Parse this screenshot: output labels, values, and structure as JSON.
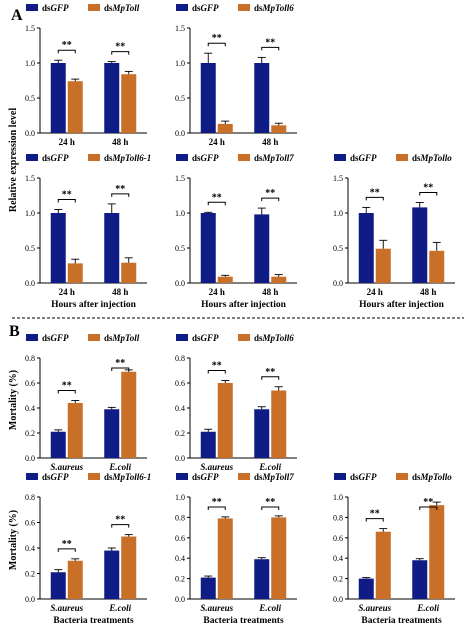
{
  "panel_labels": {
    "a": "A",
    "b": "B"
  },
  "colors": {
    "dsGFP": "#101c85",
    "dsTarget": "#c96f27"
  },
  "chart_data": [
    {
      "type": "bar",
      "panel": "A",
      "categories": [
        "24 h",
        "48 h"
      ],
      "ylim": [
        0,
        1.5
      ],
      "yticks": [
        0,
        0.5,
        1.0,
        1.5
      ],
      "ylabel": "",
      "xlabel": "",
      "series": [
        {
          "name": "dsGFP",
          "values": [
            1.0,
            1.0
          ],
          "errors": [
            0.04,
            0.02
          ]
        },
        {
          "name": "dsMpToll",
          "values": [
            0.74,
            0.84
          ],
          "errors": [
            0.03,
            0.04
          ]
        }
      ],
      "annotations": [
        "**",
        "**"
      ]
    },
    {
      "type": "bar",
      "panel": "A",
      "categories": [
        "24 h",
        "48 h"
      ],
      "ylim": [
        0,
        1.5
      ],
      "yticks": [
        0,
        0.5,
        1.0,
        1.5
      ],
      "ylabel": "",
      "xlabel": "",
      "series": [
        {
          "name": "dsGFP",
          "values": [
            1.0,
            1.0
          ],
          "errors": [
            0.14,
            0.08
          ]
        },
        {
          "name": "dsMpToll6",
          "values": [
            0.13,
            0.11
          ],
          "errors": [
            0.04,
            0.03
          ]
        }
      ],
      "annotations": [
        "**",
        "**"
      ]
    },
    {
      "type": "bar",
      "panel": "A",
      "categories": [
        "24 h",
        "48 h"
      ],
      "ylim": [
        0,
        1.5
      ],
      "yticks": [
        0,
        0.5,
        1.0,
        1.5
      ],
      "ylabel": "",
      "xlabel": "Hours after injection",
      "series": [
        {
          "name": "dsGFP",
          "values": [
            1.0,
            1.0
          ],
          "errors": [
            0.05,
            0.13
          ]
        },
        {
          "name": "dsMpToll6-1",
          "values": [
            0.28,
            0.29
          ],
          "errors": [
            0.06,
            0.07
          ]
        }
      ],
      "annotations": [
        "**",
        "**"
      ]
    },
    {
      "type": "bar",
      "panel": "A",
      "categories": [
        "24 h",
        "48 h"
      ],
      "ylim": [
        0,
        1.5
      ],
      "yticks": [
        0,
        0.5,
        1.0,
        1.5
      ],
      "ylabel": "",
      "xlabel": "Hours after injection",
      "series": [
        {
          "name": "dsGFP",
          "values": [
            1.0,
            0.98
          ],
          "errors": [
            0.01,
            0.09
          ]
        },
        {
          "name": "dsMpToll7",
          "values": [
            0.09,
            0.09
          ],
          "errors": [
            0.02,
            0.03
          ]
        }
      ],
      "annotations": [
        "**",
        "**"
      ]
    },
    {
      "type": "bar",
      "panel": "A",
      "categories": [
        "24 h",
        "48 h"
      ],
      "ylim": [
        0,
        1.5
      ],
      "yticks": [
        0,
        0.5,
        1.0,
        1.5
      ],
      "ylabel": "",
      "xlabel": "Hours after injection",
      "series": [
        {
          "name": "dsGFP",
          "values": [
            1.0,
            1.08
          ],
          "errors": [
            0.08,
            0.07
          ]
        },
        {
          "name": "dsMpTollo",
          "values": [
            0.49,
            0.46
          ],
          "errors": [
            0.12,
            0.12
          ]
        }
      ],
      "annotations": [
        "**",
        "**"
      ]
    },
    {
      "type": "bar",
      "panel": "B",
      "categories": [
        "S.aureus",
        "E.coli"
      ],
      "ylim": [
        0,
        0.8
      ],
      "yticks": [
        0,
        0.2,
        0.4,
        0.6,
        0.8
      ],
      "ylabel": "",
      "xlabel": "",
      "series": [
        {
          "name": "dsGFP",
          "values": [
            0.21,
            0.39
          ],
          "errors": [
            0.015,
            0.015
          ]
        },
        {
          "name": "dsMpToll",
          "values": [
            0.44,
            0.69
          ],
          "errors": [
            0.02,
            0.015
          ]
        }
      ],
      "annotations": [
        "**",
        "**"
      ]
    },
    {
      "type": "bar",
      "panel": "B",
      "categories": [
        "S.aureus",
        "E.coli"
      ],
      "ylim": [
        0,
        0.8
      ],
      "yticks": [
        0,
        0.2,
        0.4,
        0.6,
        0.8
      ],
      "ylabel": "",
      "xlabel": "",
      "series": [
        {
          "name": "dsGFP",
          "values": [
            0.21,
            0.39
          ],
          "errors": [
            0.02,
            0.02
          ]
        },
        {
          "name": "dsMpToll6",
          "values": [
            0.6,
            0.54
          ],
          "errors": [
            0.02,
            0.03
          ]
        }
      ],
      "annotations": [
        "**",
        "**"
      ]
    },
    {
      "type": "bar",
      "panel": "B",
      "categories": [
        "S.aureus",
        "E.coli"
      ],
      "ylim": [
        0,
        0.8
      ],
      "yticks": [
        0,
        0.2,
        0.4,
        0.6,
        0.8
      ],
      "ylabel": "",
      "xlabel": "Bacteria treatments",
      "series": [
        {
          "name": "dsGFP",
          "values": [
            0.21,
            0.38
          ],
          "errors": [
            0.02,
            0.02
          ]
        },
        {
          "name": "dsMpToll6-1",
          "values": [
            0.3,
            0.49
          ],
          "errors": [
            0.015,
            0.015
          ]
        }
      ],
      "annotations": [
        "**",
        "**"
      ]
    },
    {
      "type": "bar",
      "panel": "B",
      "categories": [
        "S.aureus",
        "E.coli"
      ],
      "ylim": [
        0,
        1.0
      ],
      "yticks": [
        0,
        0.2,
        0.4,
        0.6,
        0.8,
        1.0
      ],
      "ylabel": "",
      "xlabel": "Bacteria treatments",
      "series": [
        {
          "name": "dsGFP",
          "values": [
            0.21,
            0.39
          ],
          "errors": [
            0.015,
            0.015
          ]
        },
        {
          "name": "dsMpToll7",
          "values": [
            0.79,
            0.8
          ],
          "errors": [
            0.015,
            0.015
          ]
        }
      ],
      "annotations": [
        "**",
        "**"
      ]
    },
    {
      "type": "bar",
      "panel": "B",
      "categories": [
        "S.aureus",
        "E.coli"
      ],
      "ylim": [
        0,
        1.0
      ],
      "yticks": [
        0,
        0.2,
        0.4,
        0.6,
        0.8,
        1.0
      ],
      "ylabel": "",
      "xlabel": "Bacteria treatments",
      "series": [
        {
          "name": "dsGFP",
          "values": [
            0.2,
            0.38
          ],
          "errors": [
            0.01,
            0.015
          ]
        },
        {
          "name": "dsMpTollo",
          "values": [
            0.66,
            0.92
          ],
          "errors": [
            0.03,
            0.03
          ]
        }
      ],
      "annotations": [
        "**",
        "**"
      ]
    }
  ],
  "legend_prefix": "ds",
  "legend_italic": [
    "GFP",
    "MpToll",
    "MpToll6",
    "MpToll6-1",
    "MpToll7",
    "MpTollo"
  ],
  "shared_labels": {
    "a_ylabel": "Relative expression level",
    "b_ylabel_top": "Mortality (%)",
    "b_ylabel_bottom": "Mortality (%)"
  }
}
